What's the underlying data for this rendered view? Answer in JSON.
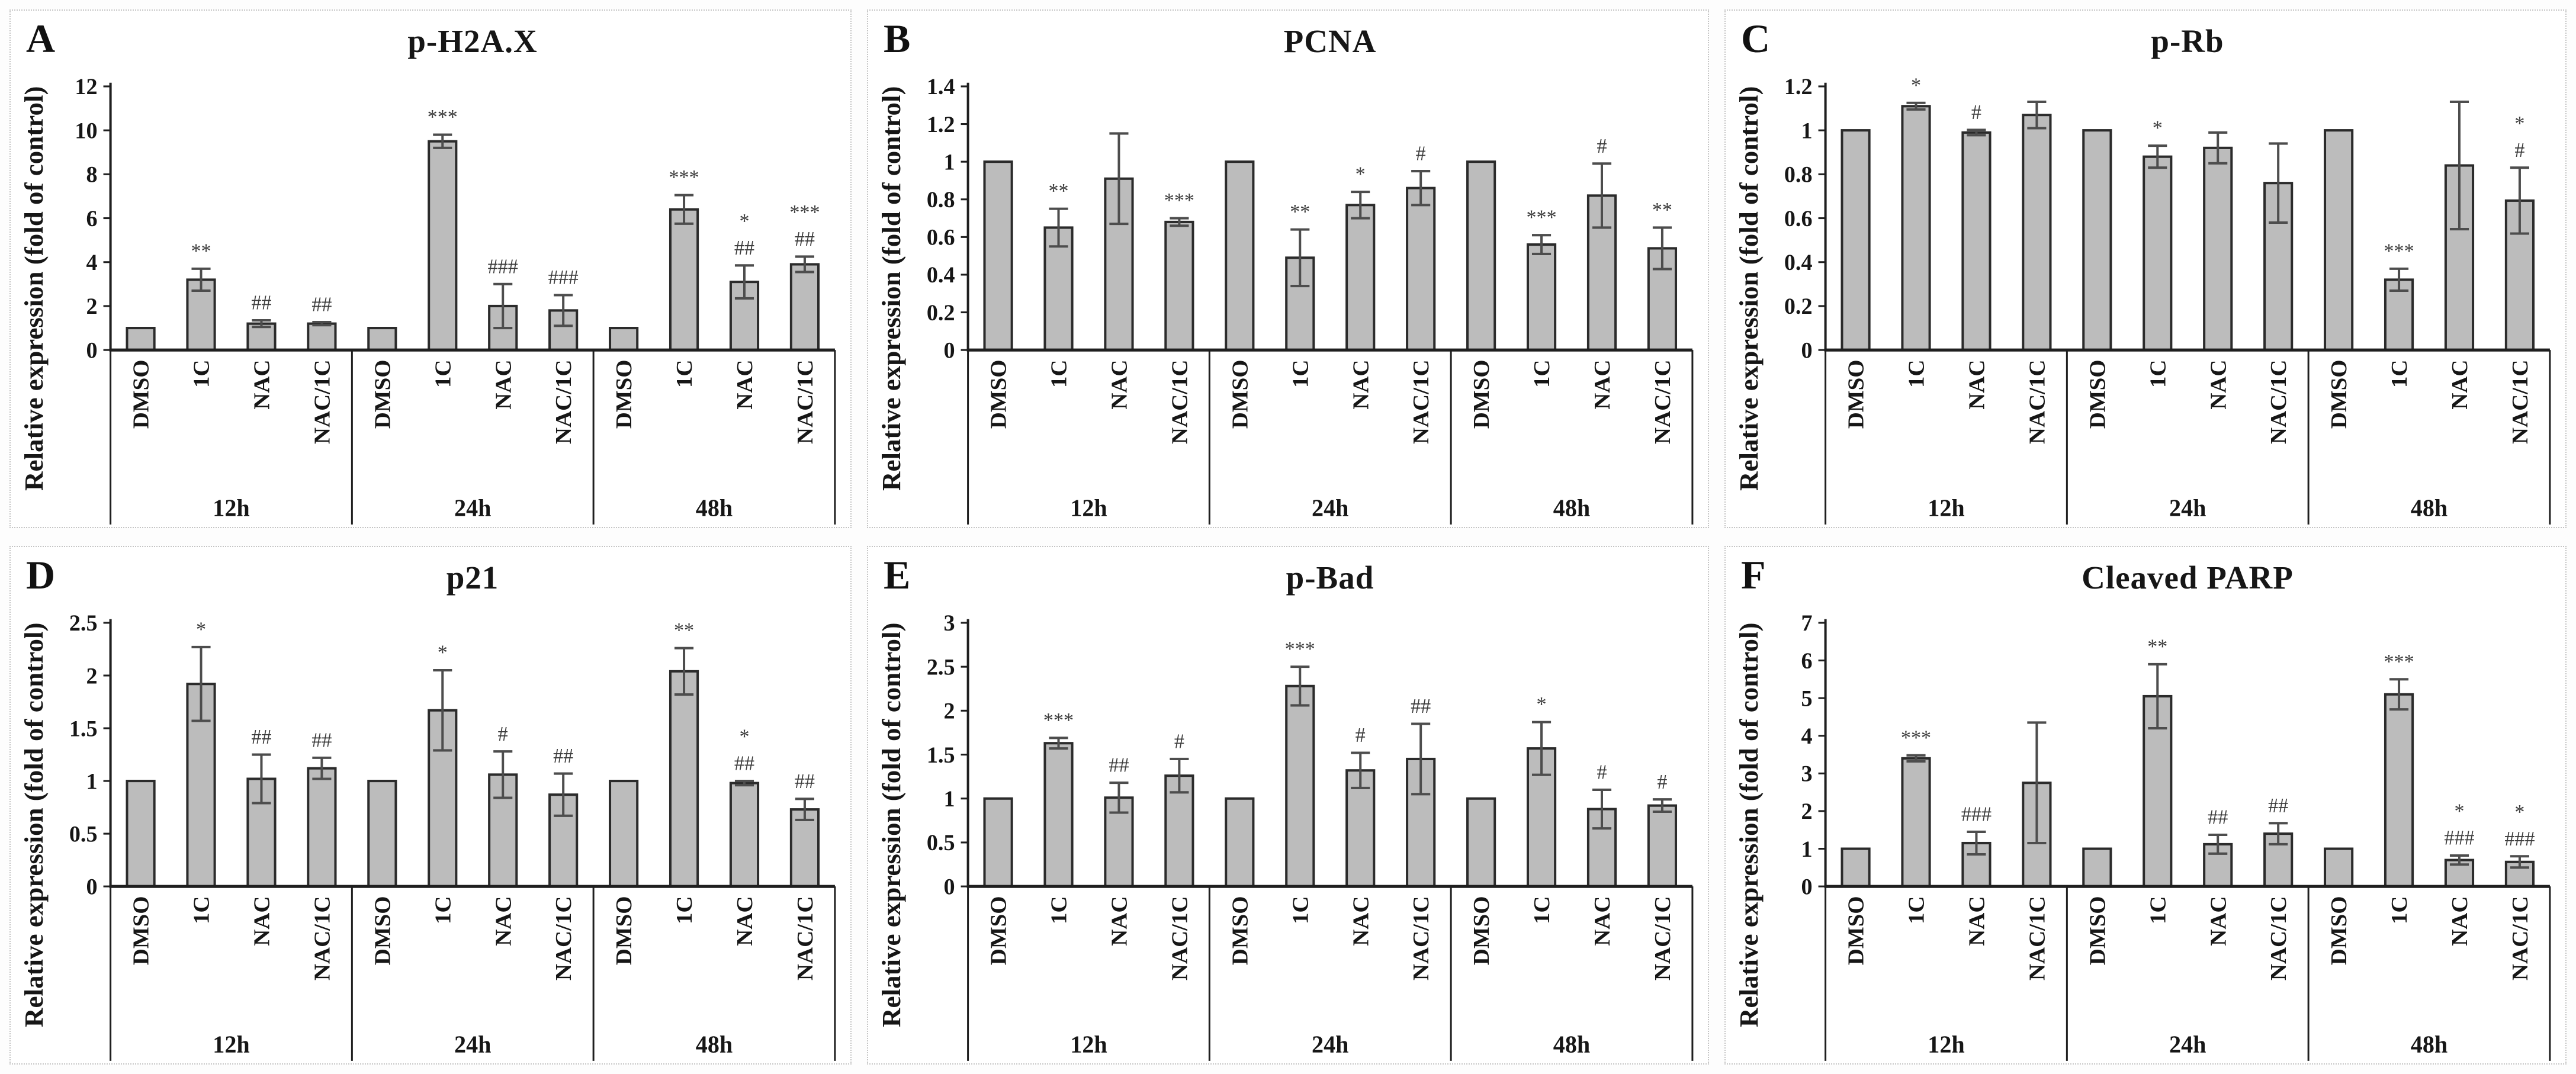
{
  "figure": {
    "y_axis_label": "Relative expression (fold of control)",
    "group_labels": [
      "12h",
      "24h",
      "48h"
    ],
    "treatments": [
      "DMSO",
      "1C",
      "NAC",
      "NAC/1C"
    ],
    "colors": {
      "bar_fill": "#bcbcbc",
      "bar_stroke": "#2b2b2b",
      "axis": "#1f1f1f",
      "error_bar": "#4d4d4d",
      "marker_text": "#3c3c3c",
      "panel_border": "#c4c4c4",
      "text": "#161616"
    }
  },
  "chart_data": [
    {
      "type": "bar",
      "panel": "A",
      "title": "p-H2A.X",
      "ylabel": "Relative expression (fold of control)",
      "ylim": [
        0,
        12
      ],
      "yticks": [
        "0",
        "2",
        "4",
        "6",
        "8",
        "10",
        "12"
      ],
      "groups": [
        "12h",
        "24h",
        "48h"
      ],
      "categories": [
        "DMSO",
        "1C",
        "NAC",
        "NAC/1C"
      ],
      "values": [
        [
          1,
          3.2,
          1.2,
          1.2
        ],
        [
          1,
          9.5,
          2.0,
          1.8
        ],
        [
          1,
          6.4,
          3.1,
          3.9
        ]
      ],
      "errors": [
        [
          0,
          0.5,
          0.15,
          0.07
        ],
        [
          0,
          0.3,
          1.0,
          0.7
        ],
        [
          0,
          0.65,
          0.75,
          0.35
        ]
      ],
      "sig": [
        [
          "",
          "**",
          "##",
          "##"
        ],
        [
          "",
          "***",
          "###",
          "###"
        ],
        [
          "",
          "***",
          "*|##",
          "***|##"
        ]
      ]
    },
    {
      "type": "bar",
      "panel": "B",
      "title": "PCNA",
      "ylabel": "Relative expression (fold of control)",
      "ylim": [
        0,
        1.4
      ],
      "yticks": [
        "0",
        "0.2",
        "0.4",
        "0.6",
        "0.8",
        "1",
        "1.2",
        "1.4"
      ],
      "groups": [
        "12h",
        "24h",
        "48h"
      ],
      "categories": [
        "DMSO",
        "1C",
        "NAC",
        "NAC/1C"
      ],
      "values": [
        [
          1,
          0.65,
          0.91,
          0.68
        ],
        [
          1,
          0.49,
          0.77,
          0.86
        ],
        [
          1,
          0.56,
          0.82,
          0.54
        ]
      ],
      "errors": [
        [
          0,
          0.1,
          0.24,
          0.02
        ],
        [
          0,
          0.15,
          0.07,
          0.09
        ],
        [
          0,
          0.05,
          0.17,
          0.11
        ]
      ],
      "sig": [
        [
          "",
          "**",
          "",
          "***"
        ],
        [
          "",
          "**",
          "*",
          "#"
        ],
        [
          "",
          "***",
          "#",
          "**"
        ]
      ]
    },
    {
      "type": "bar",
      "panel": "C",
      "title": "p-Rb",
      "ylabel": "Relative expression (fold of control)",
      "ylim": [
        0,
        1.2
      ],
      "yticks": [
        "0",
        "0.2",
        "0.4",
        "0.6",
        "0.8",
        "1",
        "1.2"
      ],
      "groups": [
        "12h",
        "24h",
        "48h"
      ],
      "categories": [
        "DMSO",
        "1C",
        "NAC",
        "NAC/1C"
      ],
      "values": [
        [
          1,
          1.11,
          0.99,
          1.07
        ],
        [
          1,
          0.88,
          0.92,
          0.76
        ],
        [
          1,
          0.32,
          0.84,
          0.68
        ]
      ],
      "errors": [
        [
          0,
          0.015,
          0.012,
          0.06
        ],
        [
          0,
          0.05,
          0.07,
          0.18
        ],
        [
          0,
          0.05,
          0.29,
          0.15
        ]
      ],
      "sig": [
        [
          "",
          "*",
          "#",
          ""
        ],
        [
          "",
          "*",
          "",
          ""
        ],
        [
          "",
          "***",
          "",
          "*|#"
        ]
      ]
    },
    {
      "type": "bar",
      "panel": "D",
      "title": "p21",
      "ylabel": "Relative expression (fold of control)",
      "ylim": [
        0,
        2.5
      ],
      "yticks": [
        "0",
        "0.5",
        "1",
        "1.5",
        "2",
        "2.5"
      ],
      "groups": [
        "12h",
        "24h",
        "48h"
      ],
      "categories": [
        "DMSO",
        "1C",
        "NAC",
        "NAC/1C"
      ],
      "values": [
        [
          1,
          1.92,
          1.02,
          1.12
        ],
        [
          1,
          1.67,
          1.06,
          0.87
        ],
        [
          1,
          2.04,
          0.98,
          0.73
        ]
      ],
      "errors": [
        [
          0,
          0.35,
          0.23,
          0.1
        ],
        [
          0,
          0.38,
          0.22,
          0.2
        ],
        [
          0,
          0.22,
          0.02,
          0.1
        ]
      ],
      "sig": [
        [
          "",
          "*",
          "##",
          "##"
        ],
        [
          "",
          "*",
          "#",
          "##"
        ],
        [
          "",
          "**",
          "*|##",
          "##"
        ]
      ]
    },
    {
      "type": "bar",
      "panel": "E",
      "title": "p-Bad",
      "ylabel": "Relative expression (fold of control)",
      "ylim": [
        0,
        3
      ],
      "yticks": [
        "0",
        "0.5",
        "1",
        "1.5",
        "2",
        "2.5",
        "3"
      ],
      "groups": [
        "12h",
        "24h",
        "48h"
      ],
      "categories": [
        "DMSO",
        "1C",
        "NAC",
        "NAC/1C"
      ],
      "values": [
        [
          1,
          1.63,
          1.01,
          1.26
        ],
        [
          1,
          2.28,
          1.32,
          1.45
        ],
        [
          1,
          1.57,
          0.88,
          0.92
        ]
      ],
      "errors": [
        [
          0,
          0.06,
          0.17,
          0.19
        ],
        [
          0,
          0.22,
          0.2,
          0.4
        ],
        [
          0,
          0.3,
          0.22,
          0.07
        ]
      ],
      "sig": [
        [
          "",
          "***",
          "##",
          "#"
        ],
        [
          "",
          "***",
          "#",
          "##"
        ],
        [
          "",
          "*",
          "#",
          "#"
        ]
      ]
    },
    {
      "type": "bar",
      "panel": "F",
      "title": "Cleaved PARP",
      "ylabel": "Relative expression (fold of control)",
      "ylim": [
        0,
        7
      ],
      "yticks": [
        "0",
        "1",
        "2",
        "3",
        "4",
        "5",
        "6",
        "7"
      ],
      "groups": [
        "12h",
        "24h",
        "48h"
      ],
      "categories": [
        "DMSO",
        "1C",
        "NAC",
        "NAC/1C"
      ],
      "values": [
        [
          1,
          3.4,
          1.15,
          2.75
        ],
        [
          1,
          5.05,
          1.12,
          1.4
        ],
        [
          1,
          5.1,
          0.7,
          0.65
        ]
      ],
      "errors": [
        [
          0,
          0.08,
          0.3,
          1.6
        ],
        [
          0,
          0.85,
          0.25,
          0.28
        ],
        [
          0,
          0.4,
          0.12,
          0.15
        ]
      ],
      "sig": [
        [
          "",
          "***",
          "###",
          ""
        ],
        [
          "",
          "**",
          "##",
          "##"
        ],
        [
          "",
          "***",
          "*|###",
          "*|###"
        ]
      ]
    }
  ]
}
